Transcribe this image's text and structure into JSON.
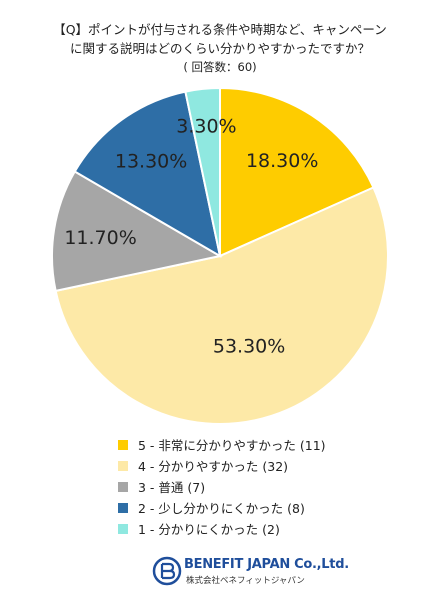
{
  "title_lines": [
    "【Q】ポイントが付与される条件や時期など、キャンペーン",
    "に関する説明はどのくらい分かりやすかったですか？"
  ],
  "subtitle": "( 回答数：60)",
  "chart_data": {
    "type": "pie",
    "slices": [
      {
        "label": "5 - 非常に分かりやすかった (11)",
        "value": 18.3,
        "pct_label": "18.30%",
        "color": "#fecc00"
      },
      {
        "label": "4 - 分かりやすかった (32)",
        "value": 53.3,
        "pct_label": "53.30%",
        "color": "#fde9a7"
      },
      {
        "label": "3 - 普通 (7)",
        "value": 11.7,
        "pct_label": "11.70%",
        "color": "#a6a6a6"
      },
      {
        "label": "2 - 少し分かりにくかった (8)",
        "value": 13.3,
        "pct_label": "13.30%",
        "color": "#2e6ea6"
      },
      {
        "label": "1 - 分かりにくかった (2)",
        "value": 3.3,
        "pct_label": "3.30%",
        "color": "#8fe8e0"
      }
    ],
    "legend_position": "bottom"
  },
  "logo": {
    "name": "BENEFIT JAPAN Co.,Ltd.",
    "sub": "株式会社ベネフィットジャパン"
  }
}
